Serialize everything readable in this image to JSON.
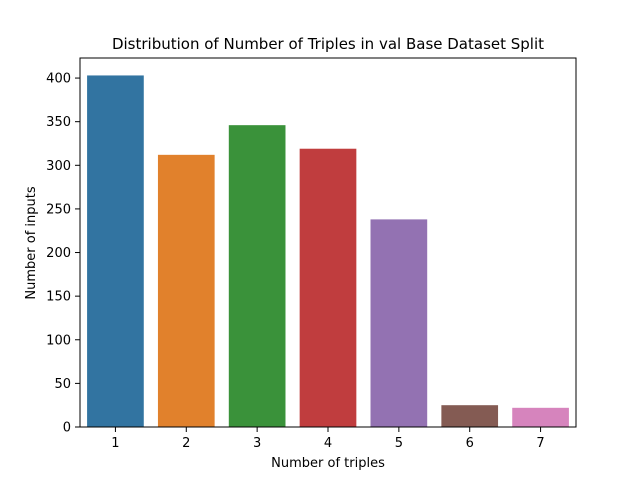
{
  "chart_data": {
    "type": "bar",
    "title": "Distribution of Number of Triples in val Base Dataset Split",
    "xlabel": "Number of triples",
    "ylabel": "Number of inputs",
    "categories": [
      "1",
      "2",
      "3",
      "4",
      "5",
      "6",
      "7"
    ],
    "values": [
      403,
      312,
      346,
      319,
      238,
      25,
      22
    ],
    "colors": [
      "#3274a1",
      "#e1812c",
      "#3a923a",
      "#c03d3e",
      "#9372b2",
      "#845b53",
      "#d684bd"
    ],
    "ylim": [
      0,
      423
    ],
    "yticks": [
      0,
      50,
      100,
      150,
      200,
      250,
      300,
      350,
      400
    ],
    "grid": false,
    "legend": "none"
  }
}
